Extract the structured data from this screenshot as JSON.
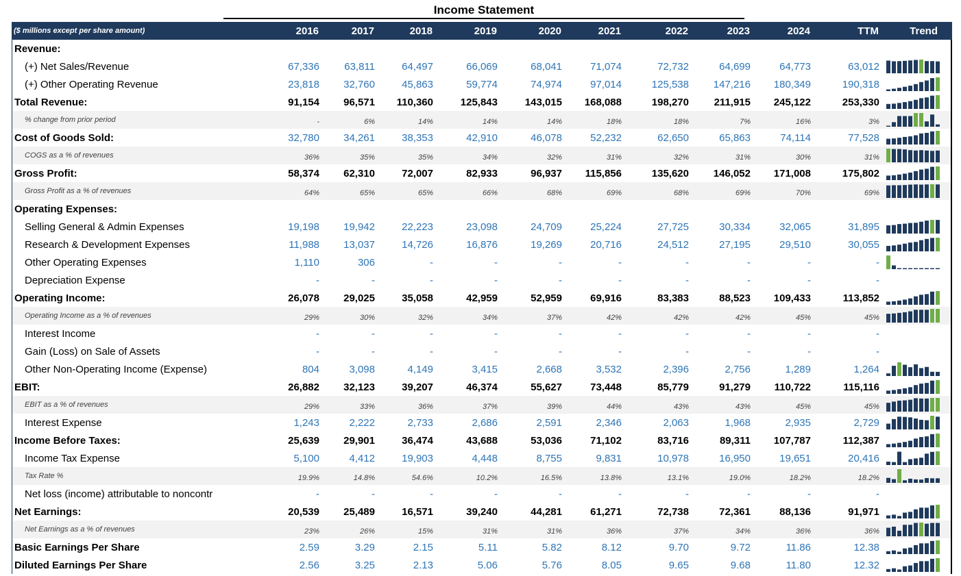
{
  "title": "Income Statement",
  "header": {
    "label": "($ millions except per share amount)",
    "years": [
      "2016",
      "2017",
      "2018",
      "2019",
      "2020",
      "2021",
      "2022",
      "2023",
      "2024",
      "TTM"
    ],
    "trend": "Trend"
  },
  "colors": {
    "header_bg": "#1f3a5c",
    "bar": "#1f3a5c",
    "bar_max": "#70ad47",
    "link_blue": "#2e75b6"
  },
  "rows": [
    {
      "type": "bold",
      "label": "Revenue:",
      "values": [],
      "trend": null
    },
    {
      "type": "item",
      "label": "(+) Net Sales/Revenue",
      "values": [
        "67,336",
        "63,811",
        "64,497",
        "66,069",
        "68,041",
        "71,074",
        "72,732",
        "64,699",
        "64,773",
        "63,012"
      ],
      "trend": [
        67336,
        63811,
        64497,
        66069,
        68041,
        71074,
        72732,
        64699,
        64773,
        63012
      ]
    },
    {
      "type": "item",
      "label": "(+) Other Operating Revenue",
      "values": [
        "23,818",
        "32,760",
        "45,863",
        "59,774",
        "74,974",
        "97,014",
        "125,538",
        "147,216",
        "180,349",
        "190,318"
      ],
      "trend": [
        23818,
        32760,
        45863,
        59774,
        74974,
        97014,
        125538,
        147216,
        180349,
        190318
      ]
    },
    {
      "type": "bold",
      "label": "Total Revenue:",
      "values": [
        "91,154",
        "96,571",
        "110,360",
        "125,843",
        "143,015",
        "168,088",
        "198,270",
        "211,915",
        "245,122",
        "253,330"
      ],
      "trend": [
        91154,
        96571,
        110360,
        125843,
        143015,
        168088,
        198270,
        211915,
        245122,
        253330
      ]
    },
    {
      "type": "sub",
      "label": "% change from prior period",
      "values": [
        "-",
        "6%",
        "14%",
        "14%",
        "14%",
        "18%",
        "18%",
        "7%",
        "16%",
        "3%"
      ],
      "trend": [
        0,
        6,
        14,
        14,
        14,
        18,
        18,
        7,
        16,
        3
      ]
    },
    {
      "type": "bold blue",
      "label": "Cost of Goods Sold:",
      "values": [
        "32,780",
        "34,261",
        "38,353",
        "42,910",
        "46,078",
        "52,232",
        "62,650",
        "65,863",
        "74,114",
        "77,528"
      ],
      "trend": [
        32780,
        34261,
        38353,
        42910,
        46078,
        52232,
        62650,
        65863,
        74114,
        77528
      ]
    },
    {
      "type": "sub",
      "label": "COGS as a % of revenues",
      "values": [
        "36%",
        "35%",
        "35%",
        "34%",
        "32%",
        "31%",
        "32%",
        "31%",
        "30%",
        "31%"
      ],
      "trend": [
        36,
        35,
        35,
        34,
        32,
        31,
        32,
        31,
        30,
        31
      ]
    },
    {
      "type": "bold",
      "label": "Gross Profit:",
      "values": [
        "58,374",
        "62,310",
        "72,007",
        "82,933",
        "96,937",
        "115,856",
        "135,620",
        "146,052",
        "171,008",
        "175,802"
      ],
      "trend": [
        58374,
        62310,
        72007,
        82933,
        96937,
        115856,
        135620,
        146052,
        171008,
        175802
      ]
    },
    {
      "type": "sub",
      "label": "Gross Profit as a % of revenues",
      "values": [
        "64%",
        "65%",
        "65%",
        "66%",
        "68%",
        "69%",
        "68%",
        "69%",
        "70%",
        "69%"
      ],
      "trend": [
        64,
        65,
        65,
        66,
        68,
        69,
        68,
        69,
        70,
        69
      ]
    },
    {
      "type": "bold",
      "label": "Operating Expenses:",
      "values": [],
      "trend": null
    },
    {
      "type": "item",
      "label": "Selling General & Admin Expenses",
      "values": [
        "19,198",
        "19,942",
        "22,223",
        "23,098",
        "24,709",
        "25,224",
        "27,725",
        "30,334",
        "32,065",
        "31,895"
      ],
      "trend": [
        19198,
        19942,
        22223,
        23098,
        24709,
        25224,
        27725,
        30334,
        32065,
        31895
      ]
    },
    {
      "type": "item",
      "label": "Research & Development Expenses",
      "values": [
        "11,988",
        "13,037",
        "14,726",
        "16,876",
        "19,269",
        "20,716",
        "24,512",
        "27,195",
        "29,510",
        "30,055"
      ],
      "trend": [
        11988,
        13037,
        14726,
        16876,
        19269,
        20716,
        24512,
        27195,
        29510,
        30055
      ]
    },
    {
      "type": "item",
      "label": "Other Operating Expenses",
      "values": [
        "1,110",
        "306",
        "-",
        "-",
        "-",
        "-",
        "-",
        "-",
        "-",
        "-"
      ],
      "trend": [
        1110,
        306,
        0,
        0,
        0,
        0,
        0,
        0,
        0,
        0
      ]
    },
    {
      "type": "item",
      "label": "Depreciation Expense",
      "values": [
        "-",
        "-",
        "-",
        "-",
        "-",
        "-",
        "-",
        "-",
        "-",
        "-"
      ],
      "trend": null
    },
    {
      "type": "bold",
      "label": "Operating Income:",
      "values": [
        "26,078",
        "29,025",
        "35,058",
        "42,959",
        "52,959",
        "69,916",
        "83,383",
        "88,523",
        "109,433",
        "113,852"
      ],
      "trend": [
        26078,
        29025,
        35058,
        42959,
        52959,
        69916,
        83383,
        88523,
        109433,
        113852
      ]
    },
    {
      "type": "sub",
      "label": "Operating Income as a % of revenues",
      "values": [
        "29%",
        "30%",
        "32%",
        "34%",
        "37%",
        "42%",
        "42%",
        "42%",
        "45%",
        "45%"
      ],
      "trend": [
        29,
        30,
        32,
        34,
        37,
        42,
        42,
        42,
        45,
        45
      ]
    },
    {
      "type": "item",
      "label": "Interest Income",
      "values": [
        "-",
        "-",
        "-",
        "-",
        "-",
        "-",
        "-",
        "-",
        "-",
        "-"
      ],
      "trend": null
    },
    {
      "type": "item",
      "label": "Gain (Loss) on Sale of Assets",
      "values": [
        "-",
        "-",
        "-",
        "-",
        "-",
        "-",
        "-",
        "-",
        "-",
        "-"
      ],
      "trend": null
    },
    {
      "type": "item",
      "label": "Other Non-Operating Income (Expense)",
      "values": [
        "804",
        "3,098",
        "4,149",
        "3,415",
        "2,668",
        "3,532",
        "2,396",
        "2,756",
        "1,289",
        "1,264"
      ],
      "trend": [
        804,
        3098,
        4149,
        3415,
        2668,
        3532,
        2396,
        2756,
        1289,
        1264
      ]
    },
    {
      "type": "bold",
      "label": "EBIT:",
      "values": [
        "26,882",
        "32,123",
        "39,207",
        "46,374",
        "55,627",
        "73,448",
        "85,779",
        "91,279",
        "110,722",
        "115,116"
      ],
      "trend": [
        26882,
        32123,
        39207,
        46374,
        55627,
        73448,
        85779,
        91279,
        110722,
        115116
      ]
    },
    {
      "type": "sub",
      "label": "EBIT as a % of revenues",
      "values": [
        "29%",
        "33%",
        "36%",
        "37%",
        "39%",
        "44%",
        "43%",
        "43%",
        "45%",
        "45%"
      ],
      "trend": [
        29,
        33,
        36,
        37,
        39,
        44,
        43,
        43,
        45,
        45
      ]
    },
    {
      "type": "item",
      "label": "Interest Expense",
      "values": [
        "1,243",
        "2,222",
        "2,733",
        "2,686",
        "2,591",
        "2,346",
        "2,063",
        "1,968",
        "2,935",
        "2,729"
      ],
      "trend": [
        1243,
        2222,
        2733,
        2686,
        2591,
        2346,
        2063,
        1968,
        2935,
        2729
      ]
    },
    {
      "type": "bold",
      "label": "Income Before Taxes:",
      "values": [
        "25,639",
        "29,901",
        "36,474",
        "43,688",
        "53,036",
        "71,102",
        "83,716",
        "89,311",
        "107,787",
        "112,387"
      ],
      "trend": [
        25639,
        29901,
        36474,
        43688,
        53036,
        71102,
        83716,
        89311,
        107787,
        112387
      ]
    },
    {
      "type": "item",
      "label": "Income Tax Expense",
      "values": [
        "5,100",
        "4,412",
        "19,903",
        "4,448",
        "8,755",
        "9,831",
        "10,978",
        "16,950",
        "19,651",
        "20,416"
      ],
      "trend": [
        5100,
        4412,
        19903,
        4448,
        8755,
        9831,
        10978,
        16950,
        19651,
        20416
      ]
    },
    {
      "type": "sub",
      "label": "Tax Rate %",
      "values": [
        "19.9%",
        "14.8%",
        "54.6%",
        "10.2%",
        "16.5%",
        "13.8%",
        "13.1%",
        "19.0%",
        "18.2%",
        "18.2%"
      ],
      "trend": [
        19.9,
        14.8,
        54.6,
        10.2,
        16.5,
        13.8,
        13.1,
        19.0,
        18.2,
        18.2
      ]
    },
    {
      "type": "item",
      "label": "Net loss (income) attributable to noncontr",
      "values": [
        "-",
        "-",
        "-",
        "-",
        "-",
        "-",
        "-",
        "-",
        "-",
        "-"
      ],
      "trend": null
    },
    {
      "type": "bold",
      "label": "Net Earnings:",
      "values": [
        "20,539",
        "25,489",
        "16,571",
        "39,240",
        "44,281",
        "61,271",
        "72,738",
        "72,361",
        "88,136",
        "91,971"
      ],
      "trend": [
        20539,
        25489,
        16571,
        39240,
        44281,
        61271,
        72738,
        72361,
        88136,
        91971
      ]
    },
    {
      "type": "sub",
      "label": "Net Earnings as a % of revenues",
      "values": [
        "23%",
        "26%",
        "15%",
        "31%",
        "31%",
        "36%",
        "37%",
        "34%",
        "36%",
        "36%"
      ],
      "trend": [
        23,
        26,
        15,
        31,
        31,
        36,
        37,
        34,
        36,
        36
      ]
    },
    {
      "type": "bold blue",
      "label": "Basic Earnings Per Share",
      "values": [
        "2.59",
        "3.29",
        "2.15",
        "5.11",
        "5.82",
        "8.12",
        "9.70",
        "9.72",
        "11.86",
        "12.38"
      ],
      "trend": [
        2.59,
        3.29,
        2.15,
        5.11,
        5.82,
        8.12,
        9.7,
        9.72,
        11.86,
        12.38
      ]
    },
    {
      "type": "bold blue",
      "label": "Diluted Earnings Per Share",
      "values": [
        "2.56",
        "3.25",
        "2.13",
        "5.06",
        "5.76",
        "8.05",
        "9.65",
        "9.68",
        "11.80",
        "12.32"
      ],
      "trend": [
        2.56,
        3.25,
        2.13,
        5.06,
        5.76,
        8.05,
        9.65,
        9.68,
        11.8,
        12.32
      ]
    }
  ]
}
